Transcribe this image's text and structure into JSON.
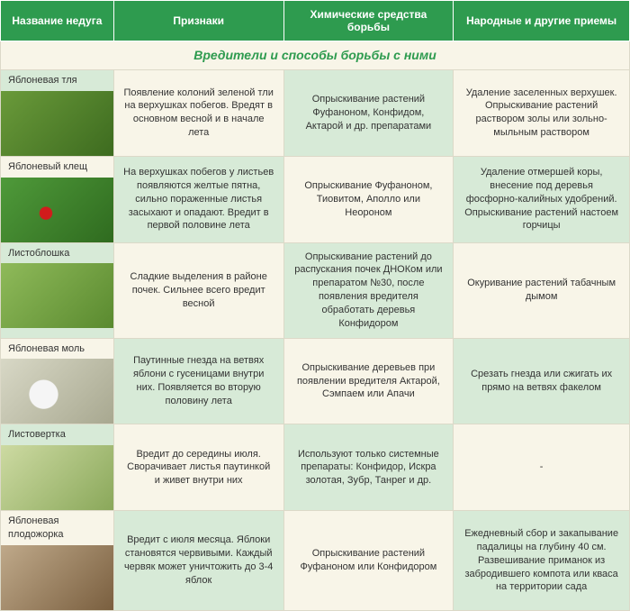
{
  "columns": [
    "Название недуга",
    "Признаки",
    "Химические средства борьбы",
    "Народные и другие приемы"
  ],
  "section_title": "Вредители и способы борьбы с ними",
  "rows": [
    {
      "tint": "on",
      "image_class": "ph-green",
      "name": "Яблоневая тля",
      "signs": "Появление колоний зеленой тли на верхушках побегов. Вредят в основном весной и в начале лета",
      "chem": "Опрыскивание растений Фуфаноном, Конфидом, Актарой и др. препаратами",
      "folk": "Удаление заселенных верхушек. Опрыскивание растений раствором золы или зольно-мыльным раствором"
    },
    {
      "tint": "off",
      "image_class": "ph-red-mite",
      "name": "Яблоневый клещ",
      "signs": "На верхушках побегов у листьев появляются желтые пятна, сильно пораженные листья засыхают и опадают. Вредит в первой половине лета",
      "chem": "Опрыскивание Фуфаноном, Тиовитом, Аполло или Неороном",
      "folk": "Удаление отмершей коры, внесение под деревья фосфорно-калийных удобрений. Опрыскивание растений настоем горчицы"
    },
    {
      "tint": "on",
      "image_class": "ph-leaf",
      "name": "Листоблошка",
      "signs": "Сладкие выделения в районе почек. Сильнее всего вредит весной",
      "chem": "Опрыскивание растений до распускания почек ДНОКом или препаратом №30, после появления вредителя обработать деревья Конфидором",
      "folk": "Окуривание растений табачным дымом"
    },
    {
      "tint": "off",
      "image_class": "ph-moth",
      "name": "Яблоневая моль",
      "signs": "Паутинные гнезда на ветвях яблони с гусеницами внутри них. Появляется во вторую половину лета",
      "chem": "Опрыскивание деревьев при появлении вредителя Актарой, Сэмпаем или Апачи",
      "folk": "Срезать гнезда или сжигать их прямо на ветвях факелом"
    },
    {
      "tint": "on",
      "image_class": "ph-leafroller",
      "name": "Листовертка",
      "signs": "Вредит до середины июля. Сворачивает листья паутинкой и живет внутри них",
      "chem": "Используют только системные препараты: Конфидор, Искра золотая, Зубр, Танрег и др.",
      "folk": "-"
    },
    {
      "tint": "off",
      "image_class": "ph-codling",
      "name": "Яблоневая плодожорка",
      "signs": "Вредит с июля месяца. Яблоки становятся червивыми. Каждый червяк может уничтожить до 3-4 яблок",
      "chem": "Опрыскивание растений Фуфаноном или Конфидором",
      "folk": "Ежедневный сбор и закапывание падалицы на глубину 40 см. Развешивание приманок из забродившего компота или кваса на территории сада"
    }
  ],
  "colors": {
    "header_bg": "#2e9b4f",
    "header_text": "#ffffff",
    "tint_light": "#f8f5e8",
    "tint_green": "#d7ead7",
    "border": "#dcd9c8",
    "section_text": "#2e9b4f"
  }
}
